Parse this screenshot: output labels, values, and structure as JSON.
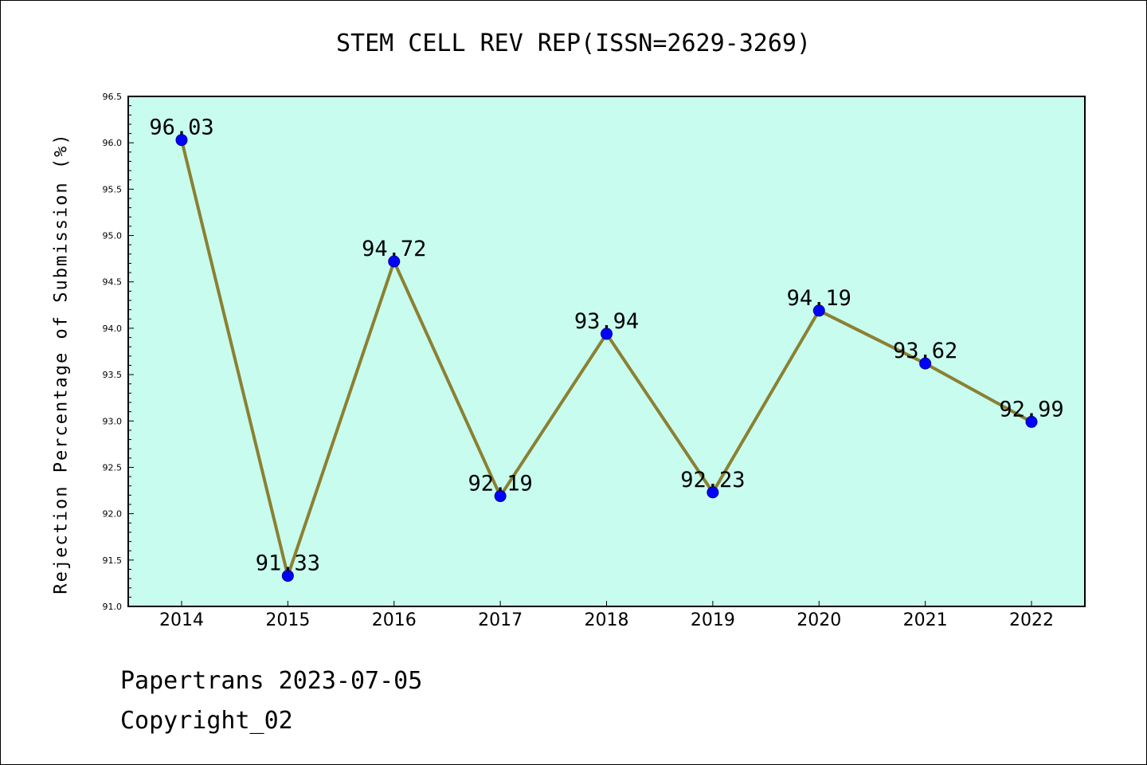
{
  "chart_data": {
    "type": "line",
    "title": "STEM CELL REV REP(ISSN=2629-3269)",
    "xlabel": "",
    "ylabel": "Rejection Percentage of Submission (%)",
    "categories": [
      "2014",
      "2015",
      "2016",
      "2017",
      "2018",
      "2019",
      "2020",
      "2021",
      "2022"
    ],
    "series": [
      {
        "values": [
          96.03,
          91.33,
          94.72,
          92.19,
          93.94,
          92.23,
          94.19,
          93.62,
          92.99
        ],
        "data_labels": [
          "96.03",
          "91.33",
          "94.72",
          "92.19",
          "93.94",
          "92.23",
          "94.19",
          "93.62",
          "92.99"
        ],
        "line_color": "#8b8032",
        "marker_color": "#0000ff"
      }
    ],
    "ylim": [
      91.0,
      96.5
    ],
    "yticks": [
      "91.0",
      "91.5",
      "92.0",
      "92.5",
      "93.0",
      "93.5",
      "94.0",
      "94.5",
      "95.0",
      "95.5",
      "96.0",
      "96.5"
    ],
    "plot_background": "#c8fcee",
    "grid": false,
    "legend": "none"
  },
  "footer": {
    "source": "Papertrans 2023-07-05",
    "copyright": "Copyright_02"
  }
}
